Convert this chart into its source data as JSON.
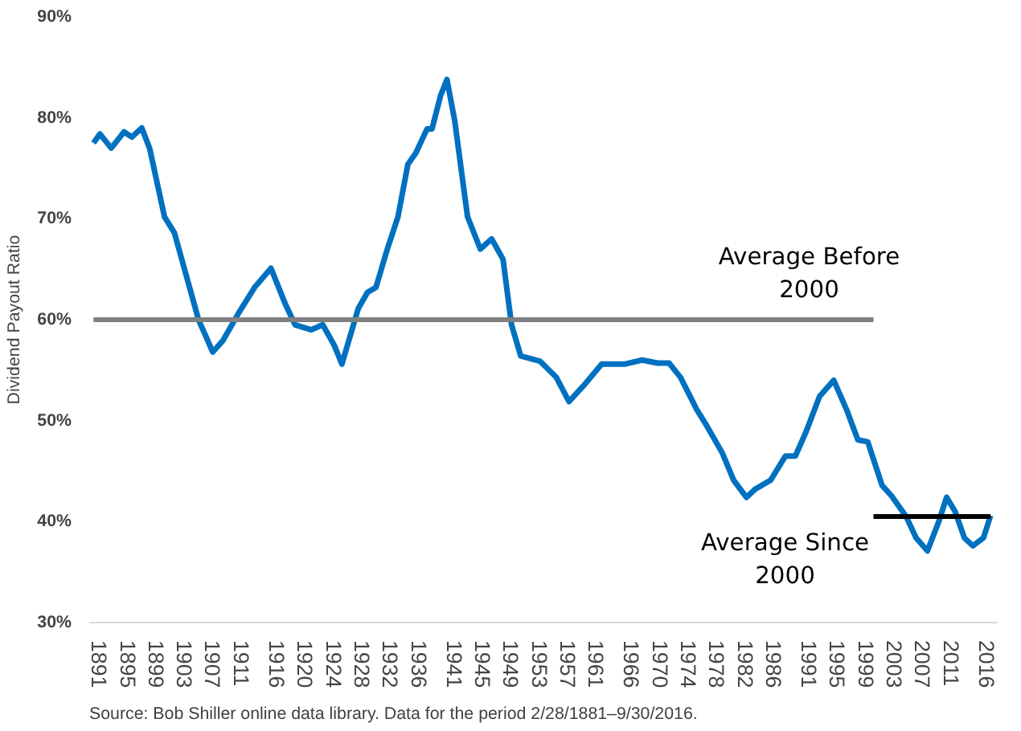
{
  "chart_data": {
    "type": "line",
    "ylabel": "Dividend Payout Ratio",
    "annotations": [
      "Source: Bob Shiller online data library. Data for the period 2/28/1881–9/30/2016."
    ],
    "xlim": [
      1889.5,
      2017.5
    ],
    "xticks": [
      1891,
      1895,
      1899,
      1903,
      1907,
      1911,
      1916,
      1920,
      1924,
      1928,
      1932,
      1936,
      1941,
      1945,
      1949,
      1953,
      1957,
      1961,
      1966,
      1970,
      1974,
      1978,
      1982,
      1986,
      1991,
      1995,
      1999,
      2003,
      2007,
      2011,
      2016
    ],
    "ylim": [
      30,
      90
    ],
    "yticks": [
      {
        "value": 30,
        "label": "30%"
      },
      {
        "value": 40,
        "label": "40%"
      },
      {
        "value": 50,
        "label": "50%"
      },
      {
        "value": 60,
        "label": "60%"
      },
      {
        "value": 70,
        "label": "70%"
      },
      {
        "value": 80,
        "label": "80%"
      },
      {
        "value": 90,
        "label": "90%"
      }
    ],
    "series": [
      {
        "color": "#0070c0",
        "x": [
          1890.1,
          1891.0,
          1892.6,
          1894.4,
          1895.5,
          1896.9,
          1898.0,
          1900.1,
          1901.5,
          1904.9,
          1906.9,
          1908.3,
          1910.5,
          1912.8,
          1915.1,
          1917.1,
          1918.5,
          1920.8,
          1922.4,
          1924.0,
          1925.1,
          1927.4,
          1928.7,
          1929.9,
          1931.5,
          1933.0,
          1934.4,
          1935.5,
          1937.1,
          1937.8,
          1939.0,
          1939.9,
          1941.0,
          1942.8,
          1944.6,
          1946.2,
          1947.8,
          1949.0,
          1950.3,
          1953.0,
          1955.3,
          1957.1,
          1959.2,
          1961.7,
          1964.9,
          1967.4,
          1969.6,
          1971.2,
          1972.8,
          1975.1,
          1976.5,
          1978.7,
          1980.3,
          1982.1,
          1983.3,
          1985.5,
          1987.6,
          1989.0,
          1990.5,
          1992.4,
          1994.4,
          1996.2,
          1997.8,
          1999.2,
          2001.2,
          2002.6,
          2004.6,
          2006.0,
          2007.6,
          2009.2,
          2010.3,
          2011.5,
          2012.8,
          2014.0,
          2015.5,
          2016.5
        ],
        "values": [
          77.5,
          78.4,
          77.0,
          78.6,
          78.1,
          79.0,
          77.0,
          70.2,
          68.6,
          60.0,
          56.8,
          57.9,
          60.6,
          63.2,
          65.1,
          61.6,
          59.5,
          59.0,
          59.5,
          57.5,
          55.6,
          61.1,
          62.7,
          63.2,
          67.0,
          70.2,
          75.4,
          76.5,
          78.9,
          78.9,
          82.2,
          83.8,
          79.7,
          70.2,
          67.0,
          68.0,
          66.0,
          59.5,
          56.4,
          55.9,
          54.3,
          51.9,
          53.5,
          55.6,
          55.6,
          56.0,
          55.7,
          55.7,
          54.3,
          51.1,
          49.5,
          46.8,
          44.1,
          42.4,
          43.2,
          44.1,
          46.5,
          46.5,
          48.9,
          52.4,
          54.0,
          51.1,
          48.1,
          47.9,
          43.6,
          42.5,
          40.5,
          38.4,
          37.1,
          40.0,
          42.4,
          41.0,
          38.4,
          37.6,
          38.4,
          40.6
        ]
      },
      {
        "name": "Average Before 2000",
        "color": "#808080",
        "x": [
          1890.1,
          2000.0
        ],
        "values": [
          60.0,
          60.0
        ]
      },
      {
        "name": "Average Since 2000",
        "color": "#000000",
        "x": [
          2000.0,
          2016.5
        ],
        "values": [
          40.5,
          40.5
        ]
      }
    ]
  }
}
